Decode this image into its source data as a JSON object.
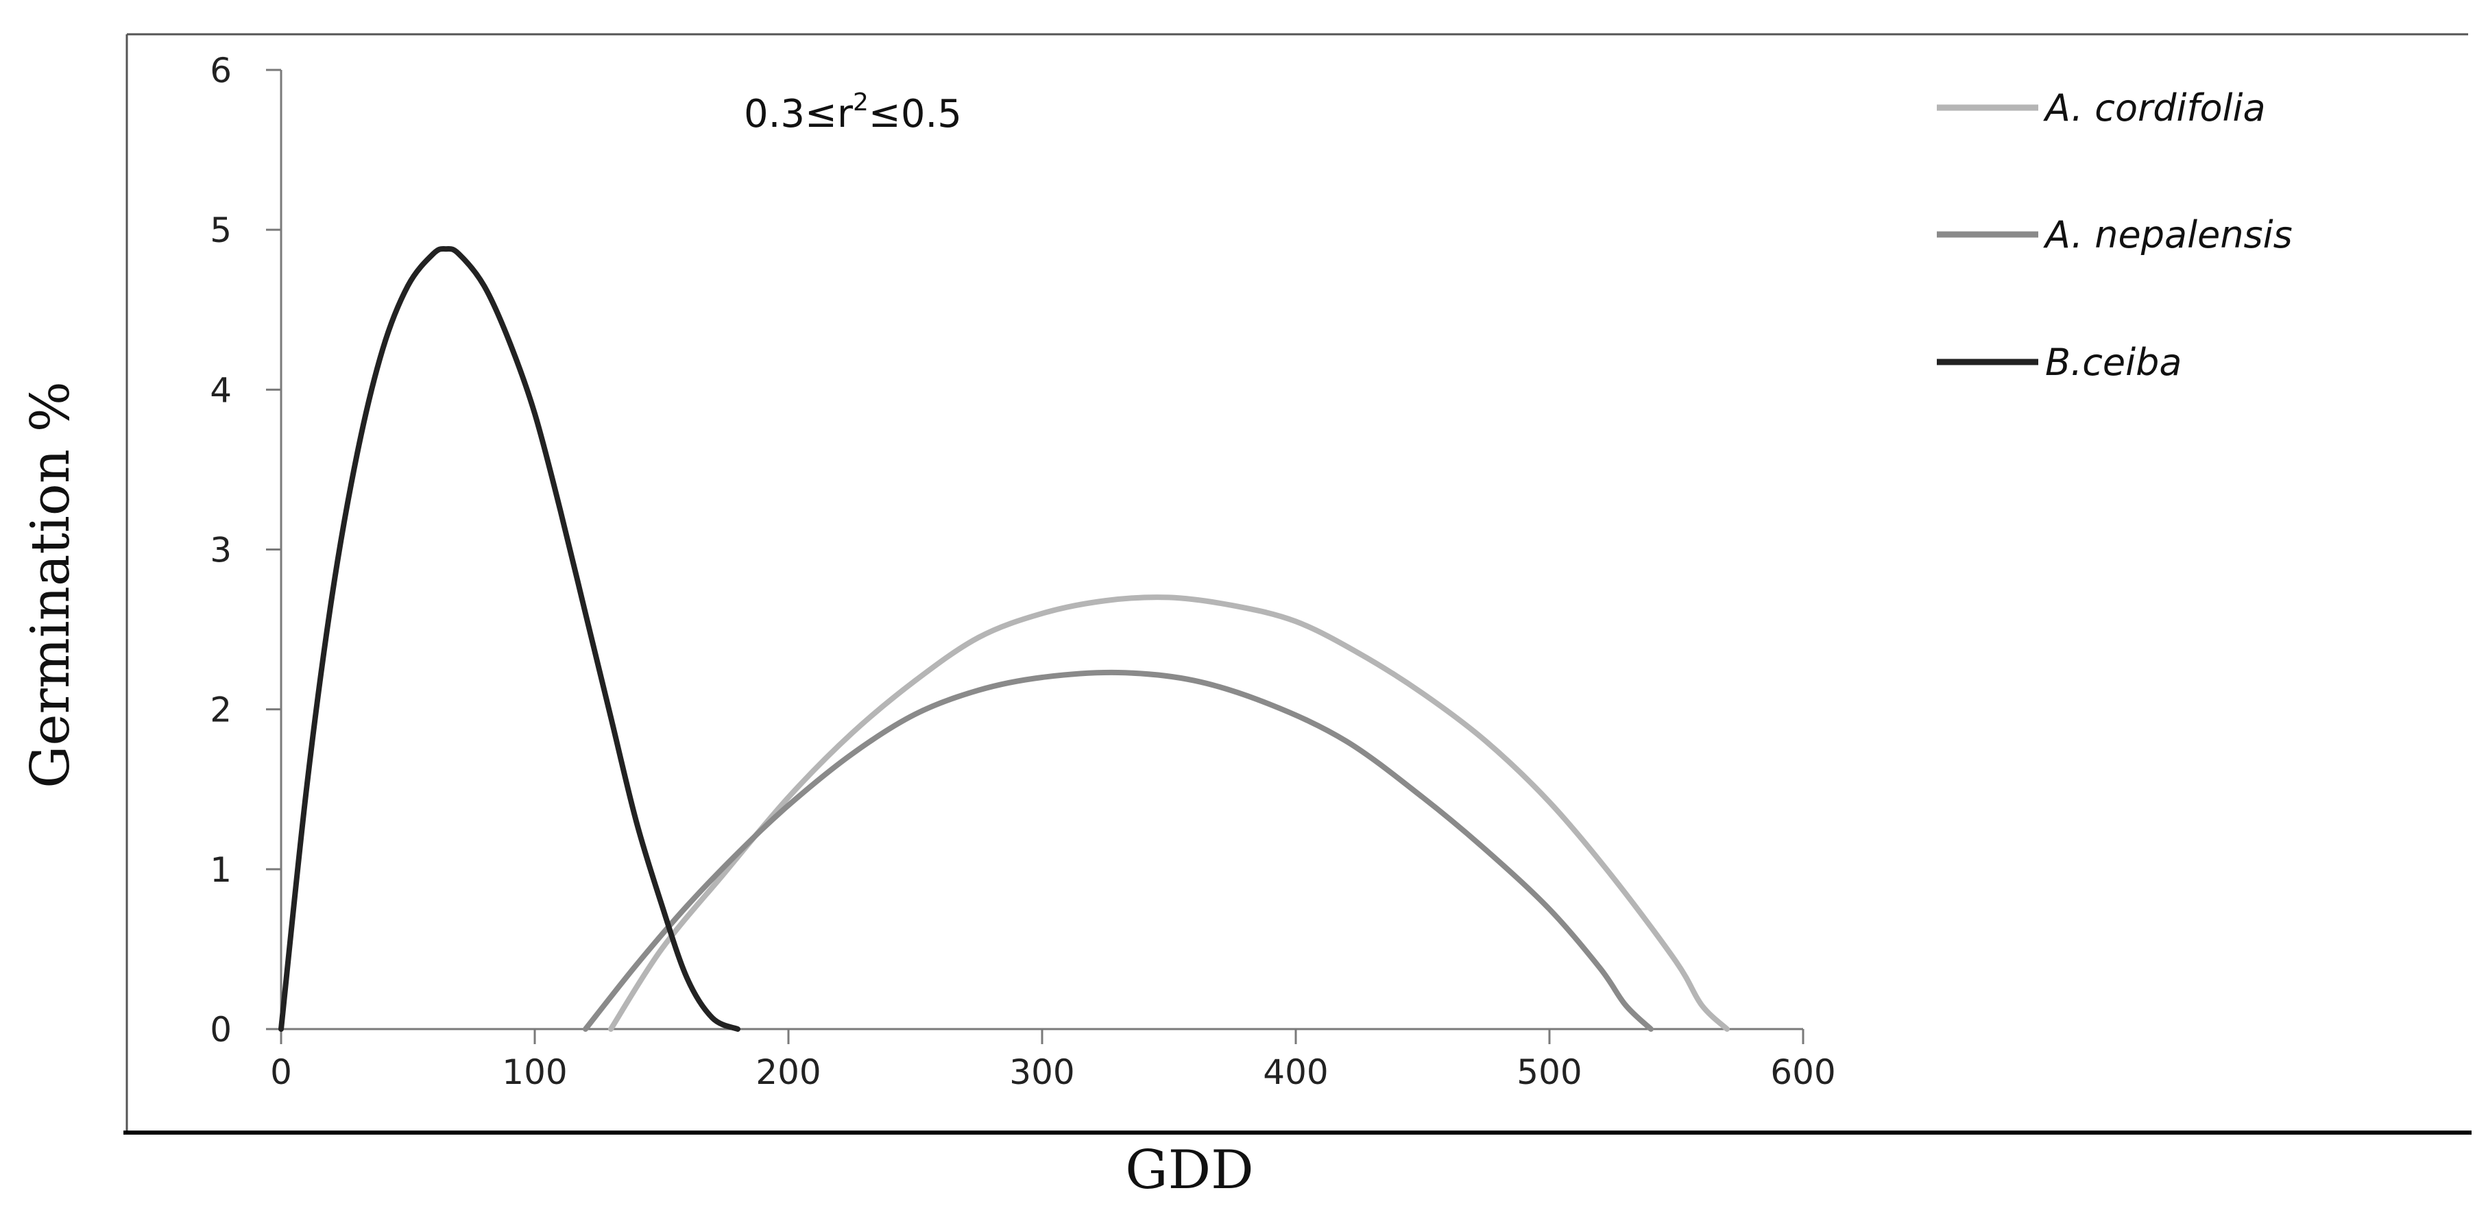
{
  "chart_data": {
    "type": "line",
    "xlabel": "GDD",
    "ylabel": "Germination %",
    "xlim": [
      0,
      600
    ],
    "ylim": [
      0,
      6
    ],
    "xticks": [
      0,
      100,
      200,
      300,
      400,
      500,
      600
    ],
    "yticks": [
      0,
      1,
      2,
      3,
      4,
      5,
      6
    ],
    "grid": false,
    "legend_position": "top-right",
    "annotation": {
      "prefix": "0.3≤r",
      "sup": "2",
      "suffix": "≤0.5"
    },
    "series": [
      {
        "name": "A. cordifolia",
        "color": "#b5b5b5",
        "x": [
          130,
          150,
          175,
          200,
          225,
          250,
          275,
          300,
          325,
          350,
          375,
          400,
          425,
          450,
          475,
          500,
          525,
          550,
          560,
          570
        ],
        "y": [
          0.0,
          0.5,
          0.98,
          1.45,
          1.85,
          2.18,
          2.45,
          2.6,
          2.68,
          2.7,
          2.65,
          2.55,
          2.35,
          2.1,
          1.8,
          1.42,
          0.95,
          0.42,
          0.15,
          0.0
        ]
      },
      {
        "name": "A. nepalensis",
        "color": "#8a8a8a",
        "x": [
          120,
          140,
          160,
          180,
          200,
          225,
          250,
          275,
          300,
          330,
          360,
          390,
          420,
          450,
          475,
          500,
          520,
          530,
          540
        ],
        "y": [
          0.0,
          0.4,
          0.77,
          1.1,
          1.4,
          1.72,
          1.97,
          2.12,
          2.2,
          2.23,
          2.18,
          2.03,
          1.8,
          1.45,
          1.12,
          0.75,
          0.38,
          0.15,
          0.0
        ]
      },
      {
        "name": "B.ceiba",
        "color": "#222222",
        "x": [
          0,
          10,
          20,
          30,
          40,
          50,
          60,
          65,
          70,
          80,
          90,
          100,
          110,
          120,
          130,
          140,
          150,
          160,
          170,
          180
        ],
        "y": [
          0.0,
          1.5,
          2.7,
          3.6,
          4.25,
          4.65,
          4.85,
          4.88,
          4.85,
          4.65,
          4.3,
          3.85,
          3.25,
          2.6,
          1.95,
          1.3,
          0.78,
          0.32,
          0.07,
          0.0
        ]
      }
    ]
  }
}
